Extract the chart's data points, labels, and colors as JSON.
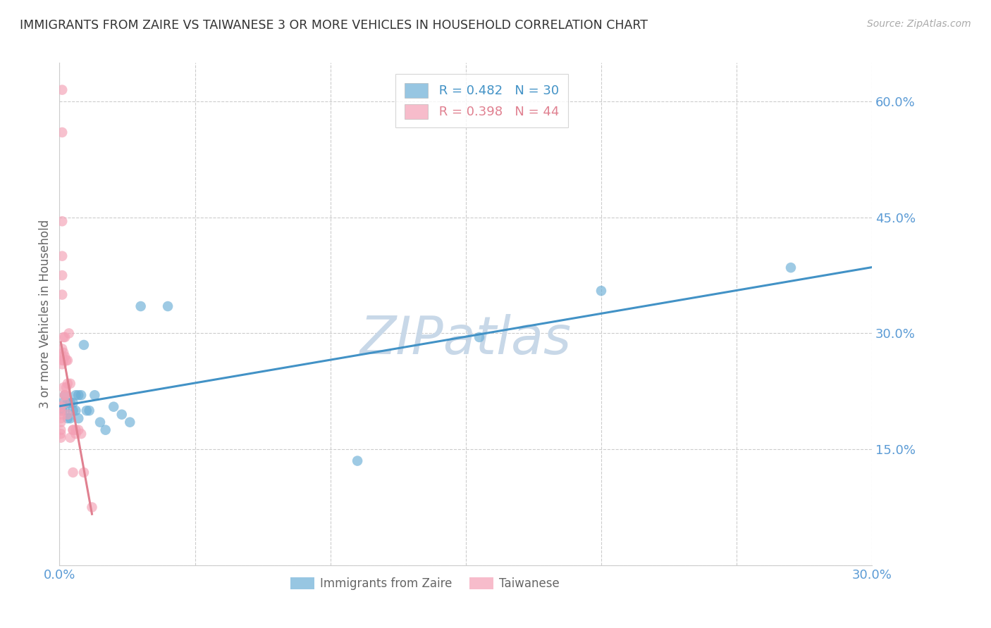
{
  "title": "IMMIGRANTS FROM ZAIRE VS TAIWANESE 3 OR MORE VEHICLES IN HOUSEHOLD CORRELATION CHART",
  "source": "Source: ZipAtlas.com",
  "ylabel": "3 or more Vehicles in Household",
  "watermark": "ZIPatlas",
  "legend_label1": "Immigrants from Zaire",
  "legend_label2": "Taiwanese",
  "R1": 0.482,
  "N1": 30,
  "R2": 0.398,
  "N2": 44,
  "color1": "#6baed6",
  "color2": "#f4a0b5",
  "trendline1_color": "#4292c6",
  "trendline2_color": "#e08090",
  "tick_color": "#5b9bd5",
  "grid_color": "#cccccc",
  "watermark_color": "#c8d8e8",
  "xlim": [
    0.0,
    0.3
  ],
  "ylim": [
    0.0,
    0.65
  ],
  "zaire_x": [
    0.001,
    0.001,
    0.002,
    0.002,
    0.003,
    0.003,
    0.004,
    0.004,
    0.005,
    0.005,
    0.006,
    0.006,
    0.007,
    0.007,
    0.008,
    0.009,
    0.01,
    0.011,
    0.013,
    0.015,
    0.017,
    0.02,
    0.023,
    0.026,
    0.03,
    0.04,
    0.11,
    0.155,
    0.2,
    0.27
  ],
  "zaire_y": [
    0.21,
    0.2,
    0.22,
    0.2,
    0.21,
    0.19,
    0.21,
    0.19,
    0.21,
    0.2,
    0.22,
    0.2,
    0.22,
    0.19,
    0.22,
    0.285,
    0.2,
    0.2,
    0.22,
    0.185,
    0.175,
    0.205,
    0.195,
    0.185,
    0.335,
    0.335,
    0.135,
    0.295,
    0.355,
    0.385
  ],
  "taiwanese_x": [
    0.0005,
    0.0005,
    0.0005,
    0.0005,
    0.0005,
    0.0005,
    0.0005,
    0.0005,
    0.001,
    0.001,
    0.001,
    0.001,
    0.001,
    0.001,
    0.001,
    0.001,
    0.001,
    0.001,
    0.0015,
    0.0015,
    0.0015,
    0.0015,
    0.002,
    0.002,
    0.002,
    0.002,
    0.002,
    0.0025,
    0.0025,
    0.003,
    0.003,
    0.003,
    0.0035,
    0.004,
    0.004,
    0.005,
    0.005,
    0.005,
    0.006,
    0.006,
    0.007,
    0.008,
    0.009,
    0.012
  ],
  "taiwanese_y": [
    0.205,
    0.2,
    0.195,
    0.19,
    0.185,
    0.175,
    0.17,
    0.165,
    0.615,
    0.56,
    0.445,
    0.4,
    0.375,
    0.35,
    0.28,
    0.27,
    0.265,
    0.26,
    0.295,
    0.275,
    0.265,
    0.23,
    0.295,
    0.27,
    0.22,
    0.22,
    0.21,
    0.265,
    0.23,
    0.265,
    0.235,
    0.195,
    0.3,
    0.235,
    0.165,
    0.175,
    0.175,
    0.12,
    0.175,
    0.17,
    0.175,
    0.17,
    0.12,
    0.075
  ]
}
